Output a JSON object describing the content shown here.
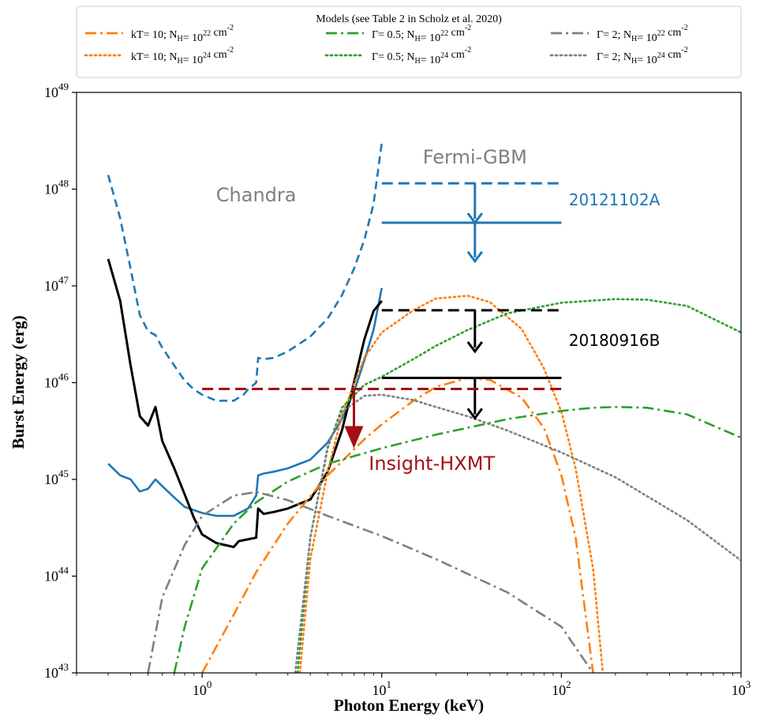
{
  "chart_data": {
    "type": "line",
    "xlabel": "Photon Energy (keV)",
    "ylabel": "Burst Energy (erg)",
    "x_scale": "log",
    "y_scale": "log",
    "xlim": [
      0.2,
      1000
    ],
    "ylim": [
      1e+43,
      1e+49
    ],
    "grid": false,
    "x_ticks": [
      {
        "value": 1,
        "base": "10",
        "exp": "0"
      },
      {
        "value": 10,
        "base": "10",
        "exp": "1"
      },
      {
        "value": 100,
        "base": "10",
        "exp": "2"
      },
      {
        "value": 1000,
        "base": "10",
        "exp": "3"
      }
    ],
    "y_ticks": [
      {
        "value": 1e+43,
        "base": "10",
        "exp": "43"
      },
      {
        "value": 1e+44,
        "base": "10",
        "exp": "44"
      },
      {
        "value": 1e+45,
        "base": "10",
        "exp": "45"
      },
      {
        "value": 1e+46,
        "base": "10",
        "exp": "46"
      },
      {
        "value": 1e+47,
        "base": "10",
        "exp": "47"
      },
      {
        "value": 1e+48,
        "base": "10",
        "exp": "48"
      },
      {
        "value": 1e+49,
        "base": "10",
        "exp": "49"
      }
    ],
    "legend": {
      "title": "Models (see Table 2 in Scholz et al. 2020)",
      "placement": "top",
      "entries": [
        {
          "label": "kT= 10; N_H= 10^22 cm^-2",
          "color": "#ff7f0e",
          "style": "dashdot"
        },
        {
          "label": "kT= 10; N_H= 10^24 cm^-2",
          "color": "#ff7f0e",
          "style": "dotted"
        },
        {
          "label": "Γ= 0.5; N_H= 10^22 cm^-2",
          "color": "#2ca02c",
          "style": "dashdot"
        },
        {
          "label": "Γ= 0.5; N_H= 10^24 cm^-2",
          "color": "#2ca02c",
          "style": "dotted"
        },
        {
          "label": "Γ= 2; N_H= 10^22 cm^-2",
          "color": "#7f7f7f",
          "style": "dashdot"
        },
        {
          "label": "Γ= 2; N_H= 10^24 cm^-2",
          "color": "#7f7f7f",
          "style": "dotted"
        }
      ]
    },
    "annotations": [
      {
        "text": "Chandra",
        "x": 2.0,
        "y": 7.5e+47,
        "color": "#7f7f7f"
      },
      {
        "text": "Fermi-GBM",
        "x": 33,
        "y": 1.85e+48,
        "color": "#7f7f7f"
      },
      {
        "text": "20121102A",
        "x": 110,
        "y": 6.8e+47,
        "color": "#1f77b4"
      },
      {
        "text": "20180916B",
        "x": 110,
        "y": 2.4e+46,
        "color": "#000000"
      },
      {
        "text": "Insight-HXMT",
        "x": 19,
        "y": 1.25e+45,
        "color": "#a50f15"
      }
    ],
    "series": [
      {
        "name": "",
        "color": "#1f77b4",
        "style": "dashed",
        "x": [
          0.3,
          0.35,
          0.4,
          0.45,
          0.5,
          0.55,
          0.6,
          0.7,
          0.8,
          0.9,
          1.0,
          1.2,
          1.5,
          1.7,
          1.8,
          2.0,
          2.05,
          2.2,
          2.5,
          3,
          4,
          5,
          6,
          7,
          8,
          9,
          10
        ],
        "y": [
          1.4e+48,
          5e+47,
          1.5e+47,
          5e+46,
          3.4e+46,
          3.1e+46,
          2.3e+46,
          1.5e+46,
          1.05e+46,
          8.5e+45,
          7.5e+45,
          6.5e+45,
          6.5e+45,
          7.5e+45,
          8.5e+45,
          1e+46,
          1.8e+46,
          1.75e+46,
          1.8e+46,
          2.1e+46,
          3e+46,
          4.6e+46,
          8e+46,
          1.5e+47,
          3e+47,
          7e+47,
          3e+48
        ]
      },
      {
        "name": "",
        "color": "#1f77b4",
        "style": "solid",
        "x": [
          0.3,
          0.35,
          0.4,
          0.45,
          0.5,
          0.55,
          0.6,
          0.7,
          0.8,
          1.0,
          1.2,
          1.5,
          1.8,
          2.0,
          2.05,
          2.2,
          2.5,
          3,
          4,
          5,
          6,
          7,
          8,
          9,
          10
        ],
        "y": [
          1.45e+45,
          1.1e+45,
          1e+45,
          7.5e+44,
          8e+44,
          1e+45,
          8.5e+44,
          6.5e+44,
          5.2e+44,
          4.5e+44,
          4.2e+44,
          4.2e+44,
          5e+44,
          6.8e+44,
          1.1e+45,
          1.15e+45,
          1.2e+45,
          1.3e+45,
          1.6e+45,
          2.4e+45,
          4.2e+45,
          8e+45,
          1.7e+46,
          3.5e+46,
          9.5e+46
        ]
      },
      {
        "name": "",
        "color": "#000000",
        "style": "solid",
        "x": [
          0.3,
          0.35,
          0.4,
          0.45,
          0.5,
          0.55,
          0.6,
          0.7,
          0.8,
          0.9,
          1.0,
          1.2,
          1.5,
          1.6,
          1.8,
          2.0,
          2.05,
          2.2,
          2.5,
          3,
          4,
          5,
          6,
          7,
          8,
          9,
          10
        ],
        "y": [
          1.9e+47,
          7e+46,
          1.5e+46,
          4.5e+45,
          3.6e+45,
          5.6e+45,
          2.5e+45,
          1.3e+45,
          7e+44,
          4e+44,
          2.7e+44,
          2.2e+44,
          2e+44,
          2.3e+44,
          2.4e+44,
          2.5e+44,
          5e+44,
          4.4e+44,
          4.6e+44,
          5e+44,
          6.2e+44,
          1.2e+45,
          3.2e+45,
          1e+46,
          2.8e+46,
          5.5e+46,
          7e+46
        ]
      },
      {
        "name": "",
        "color": "#ff7f0e",
        "style": "dashdot",
        "x": [
          1.0,
          1.5,
          2.0,
          3.0,
          5.0,
          8.0,
          10,
          15,
          20,
          30,
          40,
          60,
          80,
          100,
          120,
          150
        ],
        "y": [
          1e+43,
          4e+43,
          1.1e+44,
          3.5e+44,
          1.1e+45,
          2.6e+45,
          3.7e+45,
          6.5e+45,
          9e+45,
          1.12e+46,
          1.07e+46,
          7e+45,
          3.4e+45,
          1.1e+45,
          2.5e+44,
          1e+43
        ]
      },
      {
        "name": "",
        "color": "#ff7f0e",
        "style": "dotted",
        "x": [
          3.5,
          4,
          5,
          6,
          8,
          10,
          15,
          20,
          30,
          40,
          60,
          80,
          100,
          120,
          150,
          170
        ],
        "y": [
          1e+43,
          1.5e+44,
          1.2e+45,
          4.6e+45,
          1.8e+46,
          3.3e+46,
          5.6e+46,
          7.4e+46,
          7.9e+46,
          6.8e+46,
          3.6e+46,
          1.4e+46,
          5e+45,
          1.3e+45,
          1.2e+44,
          1e+43
        ]
      },
      {
        "name": "",
        "color": "#2ca02c",
        "style": "dashdot",
        "x": [
          0.7,
          0.8,
          1.0,
          1.5,
          2.0,
          3,
          5,
          10,
          20,
          50,
          100,
          150,
          200,
          300,
          500,
          1000
        ],
        "y": [
          1e+43,
          3e+43,
          1.2e+44,
          3.5e+44,
          5.8e+44,
          9.5e+44,
          1.45e+45,
          2.1e+45,
          2.9e+45,
          4.2e+45,
          5.1e+45,
          5.5e+45,
          5.6e+45,
          5.5e+45,
          4.7e+45,
          2.7e+45
        ]
      },
      {
        "name": "",
        "color": "#2ca02c",
        "style": "dotted",
        "x": [
          3.4,
          4,
          5,
          6,
          8,
          10,
          15,
          20,
          30,
          50,
          100,
          200,
          300,
          500,
          1000
        ],
        "y": [
          1e+43,
          2.5e+44,
          2.1e+45,
          5.5e+45,
          9.5e+45,
          1.15e+46,
          1.75e+46,
          2.4e+46,
          3.5e+46,
          5.2e+46,
          6.7e+46,
          7.3e+46,
          7.2e+46,
          6.2e+46,
          3.3e+46
        ]
      },
      {
        "name": "",
        "color": "#7f7f7f",
        "style": "dashdot",
        "x": [
          0.5,
          0.6,
          0.8,
          1.0,
          1.5,
          2.0,
          3,
          5,
          10,
          20,
          50,
          100,
          150
        ],
        "y": [
          1e+43,
          6e+43,
          2.1e+44,
          4.2e+44,
          6.8e+44,
          7.4e+44,
          6.1e+44,
          4.2e+44,
          2.6e+44,
          1.5e+44,
          6.8e+43,
          3e+43,
          1e+43
        ]
      },
      {
        "name": "",
        "color": "#7f7f7f",
        "style": "dotted",
        "x": [
          3.3,
          4,
          5,
          6,
          8,
          10,
          15,
          20,
          30,
          50,
          100,
          200,
          500,
          1000
        ],
        "y": [
          1e+43,
          2.5e+44,
          2.2e+45,
          5e+45,
          7.3e+45,
          7.5e+45,
          6.6e+45,
          5.6e+45,
          4.5e+45,
          3.2e+45,
          1.9e+45,
          1.05e+45,
          3.8e+44,
          1.45e+44
        ]
      }
    ],
    "upper_limits": [
      {
        "x_start": 10,
        "x_end": 100,
        "y": 1.15e+48,
        "arrow_x": 33,
        "arrow_to": 4.5e+47,
        "color": "#1f77b4",
        "style": "dashed"
      },
      {
        "x_start": 10,
        "x_end": 100,
        "y": 4.5e+47,
        "arrow_x": 33,
        "arrow_to": 1.8e+47,
        "color": "#1f77b4",
        "style": "solid"
      },
      {
        "x_start": 10,
        "x_end": 100,
        "y": 5.6e+46,
        "arrow_x": 33,
        "arrow_to": 2.1e+46,
        "color": "#000000",
        "style": "dashed"
      },
      {
        "x_start": 10,
        "x_end": 100,
        "y": 1.12e+46,
        "arrow_x": 33,
        "arrow_to": 4.3e+45,
        "color": "#000000",
        "style": "solid"
      },
      {
        "x_start": 1,
        "x_end": 100,
        "y": 8.6e+45,
        "arrow_x": 7,
        "arrow_to": 2.1e+45,
        "color": "#a50f15",
        "style": "dashed"
      }
    ]
  }
}
